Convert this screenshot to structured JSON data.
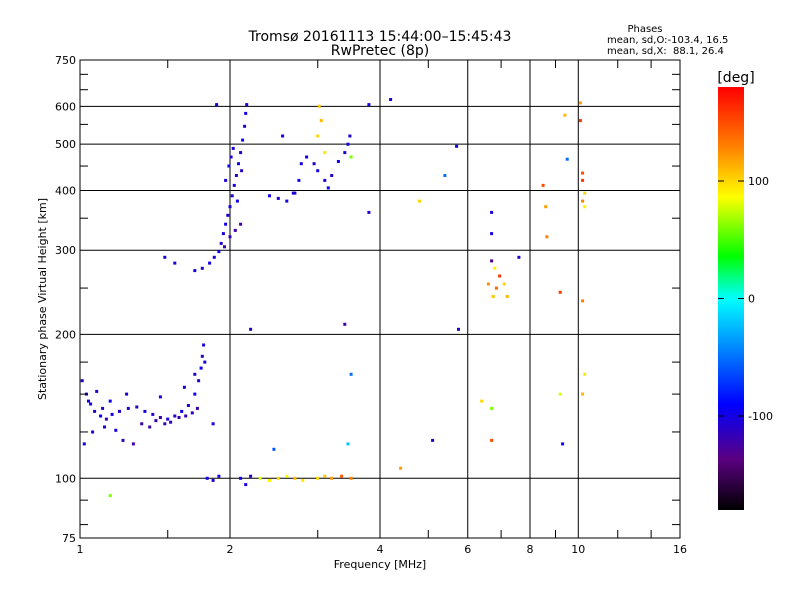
{
  "header": {
    "title_line1": "Tromsø 20161113 15:44:00–15:45:43",
    "title_line2": "RwPretec (8p)",
    "phases_label": "Phases",
    "phases_line1": "mean, sd,O:-103.4, 16.5",
    "phases_line2": "mean, sd,X:  88.1, 26.4"
  },
  "chart_data": {
    "type": "scatter",
    "title": "Tromsø 20161113 15:44:00–15:45:43",
    "subtitle": "RwPretec (8p)",
    "xlabel": "Frequency [MHz]",
    "ylabel": "Stationary phase Virtual Height [km]",
    "x_scale": "log",
    "y_scale": "log",
    "xlim": [
      1,
      16
    ],
    "ylim": [
      75,
      750
    ],
    "x_ticks": [
      1,
      2,
      4,
      6,
      8,
      10,
      16
    ],
    "x_tick_labels": [
      "1",
      "2",
      "4",
      "6",
      "8",
      "10",
      "16"
    ],
    "y_ticks": [
      75,
      100,
      200,
      300,
      400,
      500,
      600,
      750
    ],
    "y_tick_labels": [
      "75",
      "100",
      "200",
      "300",
      "400",
      "500",
      "600",
      "750"
    ],
    "grid": true,
    "colorbar": {
      "label": "[deg]",
      "range": [
        -180,
        180
      ],
      "ticks": [
        -100,
        0,
        100
      ],
      "tick_labels": [
        "-100",
        "0",
        "100"
      ],
      "colors": [
        "#000000",
        "#5a0080",
        "#0000ff",
        "#00ffff",
        "#00ff00",
        "#ffff00",
        "#ff8000",
        "#ff0000"
      ]
    },
    "series": [
      {
        "values": [
          [
            1.01,
            160,
            -105
          ],
          [
            1.03,
            150,
            -110
          ],
          [
            1.05,
            143,
            -100
          ],
          [
            1.07,
            138,
            -108
          ],
          [
            1.1,
            135,
            -95
          ],
          [
            1.13,
            133,
            -115
          ],
          [
            1.16,
            136,
            -100
          ],
          [
            1.2,
            138,
            -110
          ],
          [
            1.25,
            140,
            -105
          ],
          [
            1.3,
            141,
            -112
          ],
          [
            1.35,
            138,
            -100
          ],
          [
            1.4,
            136,
            -108
          ],
          [
            1.45,
            134,
            -118
          ],
          [
            1.5,
            133,
            -100
          ],
          [
            1.55,
            135,
            -110
          ],
          [
            1.6,
            138,
            -95
          ],
          [
            1.65,
            142,
            -105
          ],
          [
            1.7,
            150,
            -100
          ],
          [
            1.73,
            160,
            -108
          ],
          [
            1.75,
            170,
            -95
          ],
          [
            1.76,
            180,
            -112
          ],
          [
            1.77,
            190,
            -100
          ],
          [
            1.02,
            118,
            -100
          ],
          [
            1.06,
            125,
            -108
          ],
          [
            1.12,
            128,
            -104
          ],
          [
            1.18,
            126,
            -99
          ],
          [
            1.22,
            120,
            -112
          ],
          [
            1.28,
            118,
            -120
          ],
          [
            1.33,
            130,
            -118
          ],
          [
            1.38,
            128,
            -122
          ],
          [
            1.42,
            132,
            -120
          ],
          [
            1.48,
            130,
            -118
          ],
          [
            1.52,
            131,
            -116
          ],
          [
            1.58,
            134,
            -120
          ],
          [
            1.63,
            135,
            -118
          ],
          [
            1.68,
            137,
            -115
          ],
          [
            1.72,
            140,
            -120
          ],
          [
            1.04,
            145,
            -102
          ],
          [
            1.08,
            152,
            -106
          ],
          [
            1.11,
            140,
            -112
          ],
          [
            1.15,
            145,
            -98
          ],
          [
            1.24,
            150,
            -110
          ],
          [
            1.45,
            148,
            -104
          ],
          [
            1.62,
            155,
            -100
          ],
          [
            1.7,
            165,
            -106
          ],
          [
            1.78,
            175,
            -104
          ]
        ]
      },
      {
        "values": [
          [
            1.48,
            290,
            -100
          ],
          [
            1.55,
            282,
            -104
          ],
          [
            1.7,
            272,
            -100
          ],
          [
            1.76,
            275,
            -108
          ],
          [
            1.82,
            282,
            -100
          ],
          [
            1.86,
            290,
            -104
          ],
          [
            1.9,
            298,
            -100
          ],
          [
            1.92,
            310,
            -110
          ],
          [
            1.94,
            325,
            -102
          ],
          [
            1.96,
            340,
            -100
          ],
          [
            1.98,
            355,
            -106
          ],
          [
            2.0,
            370,
            -100
          ],
          [
            2.02,
            390,
            -104
          ],
          [
            2.04,
            410,
            -100
          ],
          [
            2.06,
            430,
            -108
          ],
          [
            2.08,
            455,
            -100
          ],
          [
            2.1,
            480,
            -104
          ],
          [
            2.12,
            510,
            -100
          ],
          [
            2.14,
            545,
            -106
          ],
          [
            2.15,
            580,
            -100
          ],
          [
            2.16,
            605,
            -104
          ],
          [
            1.88,
            605,
            -100
          ],
          [
            1.95,
            305,
            -120
          ],
          [
            2.0,
            320,
            -118
          ],
          [
            2.05,
            330,
            -122
          ],
          [
            2.1,
            340,
            -120
          ],
          [
            1.96,
            420,
            -104
          ],
          [
            1.99,
            450,
            -100
          ],
          [
            2.01,
            470,
            -108
          ],
          [
            2.03,
            490,
            -104
          ],
          [
            2.07,
            380,
            -100
          ],
          [
            2.11,
            440,
            -112
          ]
        ]
      },
      {
        "values": [
          [
            2.4,
            390,
            -100
          ],
          [
            2.5,
            385,
            -104
          ],
          [
            2.6,
            380,
            -100
          ],
          [
            2.7,
            395,
            -108
          ],
          [
            2.75,
            420,
            -100
          ],
          [
            2.78,
            455,
            -104
          ],
          [
            2.85,
            470,
            -100
          ],
          [
            2.95,
            455,
            -106
          ],
          [
            3.0,
            440,
            -100
          ],
          [
            3.1,
            420,
            -104
          ],
          [
            3.15,
            405,
            -100
          ],
          [
            3.2,
            430,
            -108
          ],
          [
            3.3,
            460,
            -100
          ],
          [
            3.4,
            480,
            -104
          ],
          [
            3.45,
            500,
            -100
          ],
          [
            3.48,
            520,
            -106
          ],
          [
            2.55,
            520,
            -104
          ],
          [
            2.68,
            395,
            -102
          ],
          [
            3.0,
            520,
            100
          ],
          [
            3.05,
            560,
            110
          ],
          [
            3.1,
            480,
            95
          ],
          [
            3.02,
            600,
            105
          ],
          [
            3.5,
            470,
            60
          ]
        ]
      },
      {
        "values": [
          [
            1.8,
            100,
            -100
          ],
          [
            1.85,
            99,
            -105
          ],
          [
            1.9,
            101,
            -102
          ],
          [
            2.1,
            100,
            -100
          ],
          [
            2.2,
            101,
            -108
          ],
          [
            2.3,
            100,
            80
          ],
          [
            2.4,
            99,
            90
          ],
          [
            2.5,
            100,
            100
          ],
          [
            2.6,
            101,
            85
          ],
          [
            2.7,
            100,
            110
          ],
          [
            2.8,
            99,
            95
          ],
          [
            3.0,
            100,
            100
          ],
          [
            3.1,
            101,
            105
          ],
          [
            3.2,
            100,
            120
          ],
          [
            3.35,
            101,
            145
          ],
          [
            3.5,
            100,
            130
          ],
          [
            2.15,
            97,
            -100
          ]
        ]
      },
      {
        "values": [
          [
            3.8,
            605,
            -100
          ],
          [
            4.2,
            620,
            -104
          ],
          [
            4.8,
            380,
            100
          ],
          [
            5.4,
            430,
            -50
          ],
          [
            5.7,
            495,
            -100
          ],
          [
            3.8,
            360,
            -110
          ],
          [
            3.4,
            210,
            -120
          ],
          [
            3.5,
            165,
            -50
          ],
          [
            4.4,
            105,
            120
          ],
          [
            5.1,
            120,
            -110
          ],
          [
            5.75,
            205,
            -104
          ],
          [
            3.45,
            118,
            -20
          ],
          [
            2.45,
            115,
            -60
          ],
          [
            2.2,
            205,
            -106
          ],
          [
            1.15,
            92,
            60
          ],
          [
            1.85,
            130,
            -100
          ]
        ]
      },
      {
        "values": [
          [
            6.7,
            360,
            -104
          ],
          [
            6.7,
            325,
            -100
          ],
          [
            6.7,
            285,
            -130
          ],
          [
            6.8,
            275,
            90
          ],
          [
            6.85,
            250,
            140
          ],
          [
            6.95,
            265,
            160
          ],
          [
            7.1,
            255,
            100
          ],
          [
            7.2,
            240,
            110
          ],
          [
            6.6,
            255,
            125
          ],
          [
            6.75,
            240,
            105
          ],
          [
            7.6,
            290,
            -110
          ],
          [
            6.4,
            145,
            100
          ],
          [
            6.7,
            140,
            60
          ],
          [
            6.7,
            120,
            150
          ],
          [
            8.5,
            410,
            150
          ],
          [
            8.6,
            370,
            120
          ],
          [
            8.65,
            320,
            130
          ],
          [
            9.2,
            245,
            160
          ],
          [
            9.5,
            465,
            -50
          ],
          [
            9.4,
            575,
            110
          ],
          [
            9.2,
            150,
            80
          ],
          [
            9.3,
            118,
            -100
          ],
          [
            10.1,
            610,
            120
          ],
          [
            10.2,
            435,
            150
          ],
          [
            10.2,
            420,
            160
          ],
          [
            10.3,
            395,
            100
          ],
          [
            10.2,
            380,
            130
          ],
          [
            10.3,
            370,
            90
          ],
          [
            10.1,
            560,
            160
          ],
          [
            10.2,
            235,
            130
          ],
          [
            10.2,
            150,
            110
          ],
          [
            10.3,
            165,
            95
          ]
        ]
      }
    ]
  }
}
